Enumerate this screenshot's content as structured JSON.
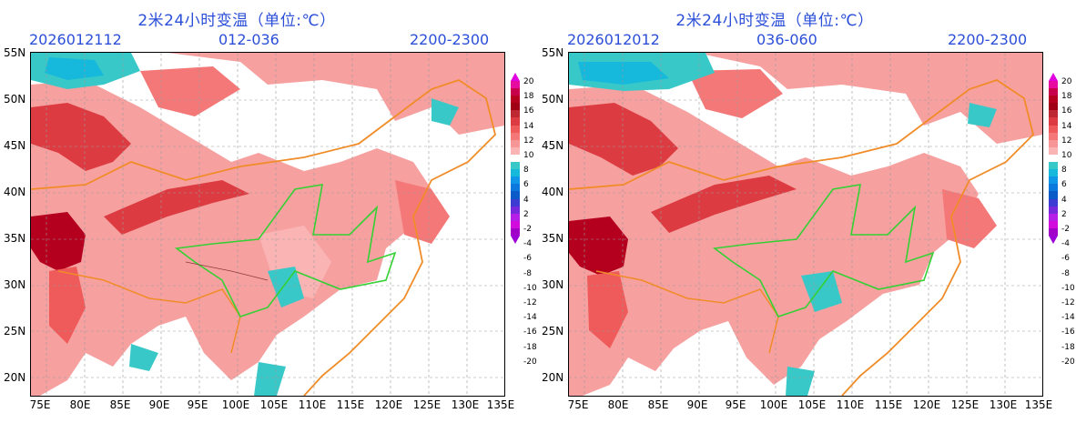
{
  "panels": [
    {
      "title": "2米24小时变温（单位:℃）",
      "init_time": "2026012112",
      "forecast_range": "012-036",
      "valid_hours": "2200-2300"
    },
    {
      "title": "2米24小时变温（单位:℃）",
      "init_time": "2026012012",
      "forecast_range": "036-060",
      "valid_hours": "2200-2300"
    }
  ],
  "axes": {
    "lat_labels": [
      "55N",
      "50N",
      "45N",
      "40N",
      "35N",
      "30N",
      "25N",
      "20N"
    ],
    "lon_labels": [
      "75E",
      "80E",
      "85E",
      "90E",
      "95E",
      "100E",
      "105E",
      "110E",
      "115E",
      "120E",
      "125E",
      "130E",
      "135E"
    ],
    "lat_range": [
      18,
      55
    ],
    "lon_range": [
      73,
      135
    ]
  },
  "colorbar": {
    "labels": [
      "20",
      "18",
      "16",
      "14",
      "12",
      "10",
      "8",
      "6",
      "4",
      "2",
      "-2",
      "-4",
      "-6",
      "-8",
      "-10",
      "-12",
      "-14",
      "-16",
      "-18",
      "-20"
    ],
    "colors": [
      "#e60aa0",
      "#c8004b",
      "#b4001e",
      "#a00014",
      "#be2832",
      "#dc3c41",
      "#ef5a5a",
      "#f57878",
      "#f79696",
      "#fbb4b4",
      "#ffffff",
      "#39c8c8",
      "#16b9dc",
      "#0f96e6",
      "#0a78dc",
      "#0a5ac8",
      "#3c3cd2",
      "#7828dc",
      "#b41ee6",
      "#d20adc",
      "#a000c8"
    ]
  }
}
